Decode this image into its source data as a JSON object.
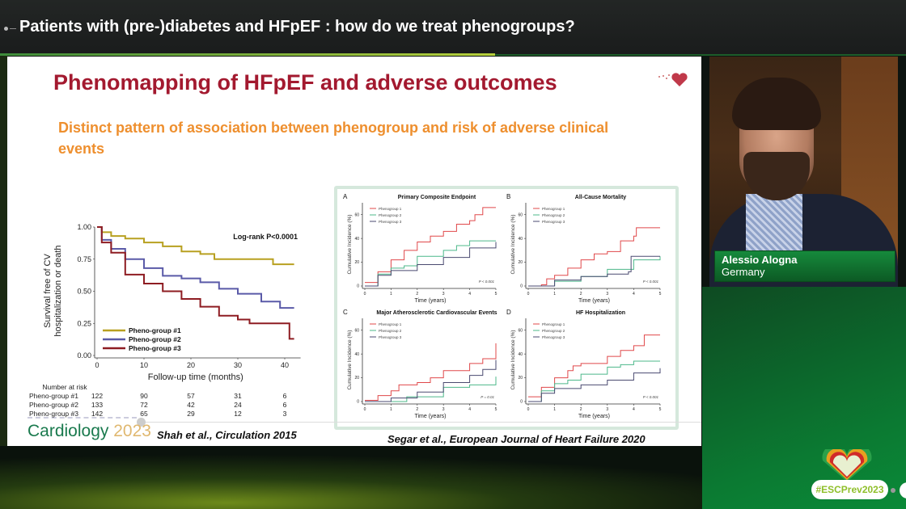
{
  "header": {
    "title": "Patients with (pre-)diabetes and HFpEF : how do we treat phenogroups?"
  },
  "slide": {
    "title": "Phenomapping of HFpEF and adverse outcomes",
    "subtitle": "Distinct pattern of association between phenogroup and risk of adverse clinical events",
    "footer_logo_text": "Cardiology",
    "footer_logo_year": "2023",
    "citation_left": "Shah et al., Circulation 2015",
    "citation_right": "Segar et al., European Journal of Heart Failure 2020"
  },
  "speaker": {
    "name": "Alessio Alogna",
    "country": "Germany"
  },
  "event": {
    "hashtag": "#ESCPrev2023"
  },
  "colors": {
    "slide_title": "#a3192f",
    "subtitle": "#ee8f2e",
    "esc_green": "#0c7a32"
  },
  "chart_data": [
    {
      "type": "line",
      "title": "",
      "xlabel": "Follow-up time (months)",
      "ylabel": "Survival free of CV hospitalization or death",
      "xlim": [
        0,
        42
      ],
      "ylim": [
        0,
        1
      ],
      "xticks": [
        "0",
        "10",
        "20",
        "30",
        "40"
      ],
      "yticks": [
        "0.00",
        "0.25",
        "0.50",
        "0.75",
        "1.00"
      ],
      "annotation": "Log-rank P<0.0001",
      "legend": "bottom-left",
      "series": [
        {
          "name": "Pheno-group #1",
          "color": "#b8a020",
          "points": [
            [
              0,
              1
            ],
            [
              1,
              0.96
            ],
            [
              3,
              0.93
            ],
            [
              6,
              0.91
            ],
            [
              10,
              0.88
            ],
            [
              14,
              0.85
            ],
            [
              18,
              0.81
            ],
            [
              22,
              0.79
            ],
            [
              25,
              0.75
            ],
            [
              37.5,
              0.71
            ],
            [
              42,
              0.71
            ]
          ]
        },
        {
          "name": "Pheno-group #2",
          "color": "#5a5aa8",
          "points": [
            [
              0,
              1
            ],
            [
              1,
              0.9
            ],
            [
              3,
              0.83
            ],
            [
              6,
              0.75
            ],
            [
              10,
              0.68
            ],
            [
              14,
              0.62
            ],
            [
              18,
              0.6
            ],
            [
              22,
              0.57
            ],
            [
              26,
              0.52
            ],
            [
              30,
              0.48
            ],
            [
              35,
              0.42
            ],
            [
              39,
              0.37
            ],
            [
              42,
              0.37
            ]
          ]
        },
        {
          "name": "Pheno-group #3",
          "color": "#8e1c22",
          "points": [
            [
              0,
              1
            ],
            [
              1,
              0.88
            ],
            [
              3,
              0.8
            ],
            [
              6,
              0.63
            ],
            [
              10,
              0.56
            ],
            [
              14,
              0.5
            ],
            [
              18,
              0.44
            ],
            [
              22,
              0.38
            ],
            [
              26,
              0.31
            ],
            [
              30,
              0.28
            ],
            [
              32.5,
              0.25
            ],
            [
              41,
              0.25
            ],
            [
              41,
              0.13
            ],
            [
              42,
              0.13
            ]
          ]
        }
      ],
      "risk_table": {
        "title": "Number at risk",
        "rows": [
          {
            "label": "Pheno-group #1",
            "values": [
              "122",
              "90",
              "57",
              "31",
              "6"
            ]
          },
          {
            "label": "Pheno-group #2",
            "values": [
              "133",
              "72",
              "42",
              "24",
              "6"
            ]
          },
          {
            "label": "Pheno-group #3",
            "values": [
              "142",
              "65",
              "29",
              "12",
              "3"
            ]
          }
        ]
      }
    },
    {
      "type": "line",
      "panel": "A",
      "title": "Primary Composite Endpoint",
      "xlabel": "Time (years)",
      "ylabel": "Cumulative Incidence (%)",
      "xlim": [
        0,
        5
      ],
      "ylim": [
        0,
        70
      ],
      "xticks": [
        "0",
        "1",
        "2",
        "3",
        "4",
        "5"
      ],
      "yticks": [
        "0",
        "20",
        "40",
        "60"
      ],
      "annotation": "P < 0.001",
      "legend": "top-left",
      "series": [
        {
          "name": "Phenogroup 1",
          "color": "#e0484a",
          "points": [
            [
              0,
              3
            ],
            [
              0.5,
              12
            ],
            [
              1,
              22
            ],
            [
              1.5,
              30
            ],
            [
              2,
              37
            ],
            [
              2.5,
              42
            ],
            [
              3,
              46
            ],
            [
              3.5,
              52
            ],
            [
              4,
              55
            ],
            [
              4.2,
              60
            ],
            [
              4.5,
              66
            ],
            [
              5,
              66
            ]
          ]
        },
        {
          "name": "Phenogroup 2",
          "color": "#4cb88a",
          "points": [
            [
              0,
              0
            ],
            [
              0.5,
              10
            ],
            [
              1,
              15
            ],
            [
              1.5,
              17
            ],
            [
              2,
              25
            ],
            [
              3,
              30
            ],
            [
              3.5,
              34
            ],
            [
              4,
              38
            ],
            [
              5,
              38
            ]
          ]
        },
        {
          "name": "Phenogroup 3",
          "color": "#4a4a70",
          "points": [
            [
              0,
              0
            ],
            [
              0.5,
              9
            ],
            [
              1,
              13
            ],
            [
              2,
              18
            ],
            [
              3,
              24
            ],
            [
              4,
              32
            ],
            [
              5,
              37
            ]
          ]
        }
      ]
    },
    {
      "type": "line",
      "panel": "B",
      "title": "All-Cause Mortality",
      "xlabel": "Time (years)",
      "ylabel": "Cumulative Incidence (%)",
      "xlim": [
        0,
        5
      ],
      "ylim": [
        0,
        70
      ],
      "xticks": [
        "0",
        "1",
        "2",
        "3",
        "4",
        "5"
      ],
      "yticks": [
        "0",
        "20",
        "40",
        "60"
      ],
      "annotation": "P < 0.001",
      "legend": "top-left",
      "series": [
        {
          "name": "Phenogroup 1",
          "color": "#e0484a",
          "points": [
            [
              0,
              0
            ],
            [
              0.5,
              1
            ],
            [
              0.7,
              6
            ],
            [
              1,
              9
            ],
            [
              1.5,
              15
            ],
            [
              2,
              22
            ],
            [
              2.5,
              27
            ],
            [
              3,
              29
            ],
            [
              3.5,
              38
            ],
            [
              4,
              42
            ],
            [
              4.1,
              49
            ],
            [
              5,
              49
            ]
          ]
        },
        {
          "name": "Phenogroup 2",
          "color": "#4cb88a",
          "points": [
            [
              0,
              0
            ],
            [
              1,
              4
            ],
            [
              2,
              8
            ],
            [
              3,
              14
            ],
            [
              4,
              22
            ],
            [
              5,
              25
            ]
          ]
        },
        {
          "name": "Phenogroup 3",
          "color": "#4a4a70",
          "points": [
            [
              0,
              0
            ],
            [
              1,
              5
            ],
            [
              2,
              8
            ],
            [
              3,
              10
            ],
            [
              3.8,
              12
            ],
            [
              3.9,
              25
            ],
            [
              5,
              25
            ]
          ]
        }
      ]
    },
    {
      "type": "line",
      "panel": "C",
      "title": "Major Atherosclerotic Cardiovascular Events",
      "xlabel": "Time (years)",
      "ylabel": "Cumulative Incidence (%)",
      "xlim": [
        0,
        5
      ],
      "ylim": [
        0,
        70
      ],
      "xticks": [
        "0",
        "1",
        "2",
        "3",
        "4",
        "5"
      ],
      "yticks": [
        "0",
        "20",
        "40",
        "60"
      ],
      "annotation": "P = 0.01",
      "legend": "top-left",
      "series": [
        {
          "name": "Phenogroup 1",
          "color": "#e0484a",
          "points": [
            [
              0,
              1
            ],
            [
              0.5,
              5
            ],
            [
              1,
              9
            ],
            [
              1.3,
              14
            ],
            [
              2,
              16
            ],
            [
              2.5,
              20
            ],
            [
              3,
              26
            ],
            [
              4,
              32
            ],
            [
              4.5,
              36
            ],
            [
              4.9,
              36
            ],
            [
              5,
              49
            ]
          ]
        },
        {
          "name": "Phenogroup 2",
          "color": "#4cb88a",
          "points": [
            [
              0,
              0
            ],
            [
              1.5,
              0
            ],
            [
              1.6,
              4
            ],
            [
              3,
              6
            ],
            [
              3,
              12
            ],
            [
              4,
              14
            ],
            [
              5,
              14
            ],
            [
              5,
              21
            ]
          ]
        },
        {
          "name": "Phenogroup 3",
          "color": "#4a4a70",
          "points": [
            [
              0,
              0
            ],
            [
              1,
              3
            ],
            [
              2,
              8
            ],
            [
              3,
              16
            ],
            [
              4,
              22
            ],
            [
              4.5,
              27
            ],
            [
              5,
              35
            ]
          ]
        }
      ]
    },
    {
      "type": "line",
      "panel": "D",
      "title": "HF Hospitalization",
      "xlabel": "Time (years)",
      "ylabel": "Cumulative Incidence (%)",
      "xlim": [
        0,
        5
      ],
      "ylim": [
        0,
        70
      ],
      "xticks": [
        "0",
        "1",
        "2",
        "3",
        "4",
        "5"
      ],
      "yticks": [
        "0",
        "20",
        "40",
        "60"
      ],
      "annotation": "P < 0.001",
      "legend": "top-left",
      "series": [
        {
          "name": "Phenogroup 1",
          "color": "#e0484a",
          "points": [
            [
              0,
              4
            ],
            [
              0.5,
              12
            ],
            [
              1,
              20
            ],
            [
              1.5,
              26
            ],
            [
              1.7,
              30
            ],
            [
              2,
              32
            ],
            [
              3,
              38
            ],
            [
              3.5,
              43
            ],
            [
              4,
              47
            ],
            [
              4.4,
              56
            ],
            [
              5,
              56
            ]
          ]
        },
        {
          "name": "Phenogroup 2",
          "color": "#4cb88a",
          "points": [
            [
              0,
              0
            ],
            [
              0.5,
              9
            ],
            [
              1,
              15
            ],
            [
              1.5,
              18
            ],
            [
              2,
              23
            ],
            [
              3,
              29
            ],
            [
              3.5,
              31
            ],
            [
              4,
              34
            ],
            [
              5,
              34
            ]
          ]
        },
        {
          "name": "Phenogroup 3",
          "color": "#4a4a70",
          "points": [
            [
              0,
              0
            ],
            [
              0.5,
              7
            ],
            [
              1,
              11
            ],
            [
              2,
              14
            ],
            [
              3,
              18
            ],
            [
              4,
              24
            ],
            [
              5,
              28
            ]
          ]
        }
      ]
    }
  ]
}
